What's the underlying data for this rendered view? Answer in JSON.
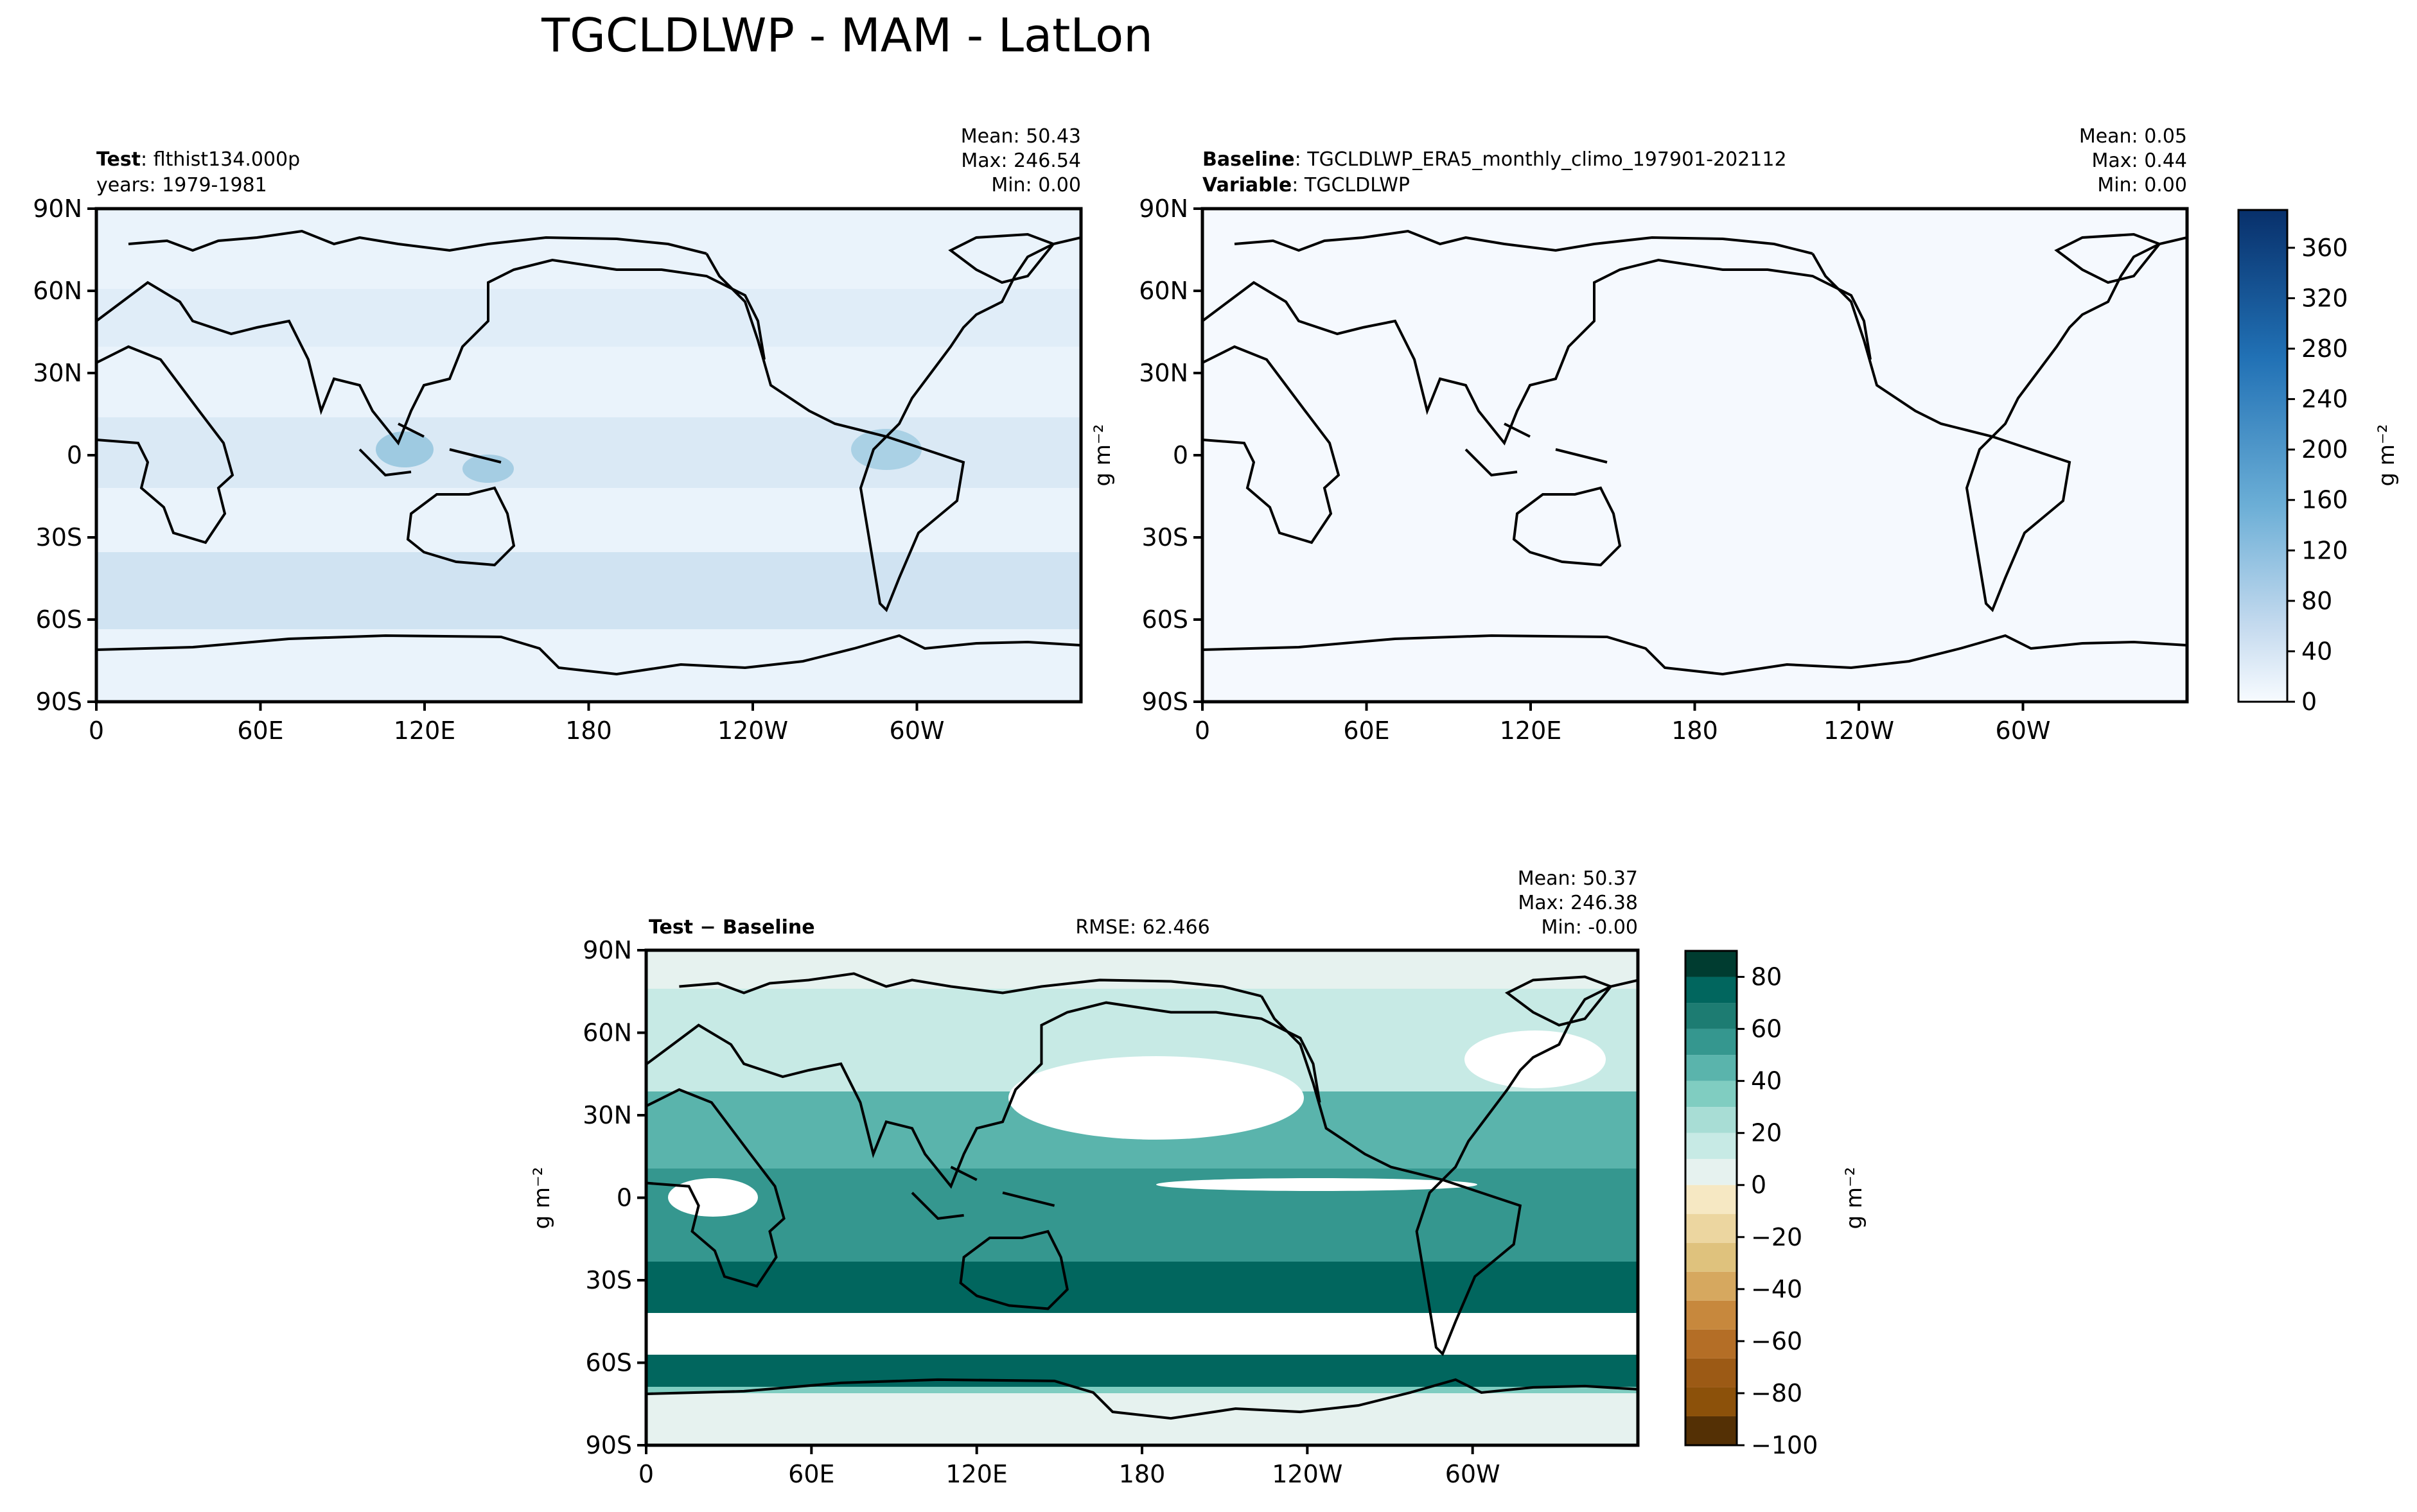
{
  "figure": {
    "title": "TGCLDLWP - MAM - LatLon"
  },
  "colors": {
    "blues": [
      "#f7fbff",
      "#deebf7",
      "#c6dbef",
      "#9ecae1",
      "#6baed6",
      "#4292c6",
      "#2171b5",
      "#08519c",
      "#08306b"
    ],
    "brbg_pos": [
      "#e6f2ef",
      "#c7eae5",
      "#a8ddd5",
      "#80cdc1",
      "#5ab4ac",
      "#35978f",
      "#1d7c72",
      "#01665e",
      "#003c30"
    ],
    "brbg_neg": [
      "#f6e8c3",
      "#ecd6a0",
      "#dfc27d",
      "#d6a85f",
      "#c7883d",
      "#b46e26",
      "#9c5a15",
      "#8c510a",
      "#543005"
    ],
    "axis": "#000000"
  },
  "chart_data": [
    {
      "id": "test",
      "type": "heatmap",
      "title_bold": "Test",
      "title_sep": ": ",
      "title_text": "flthist134.000p",
      "subtitle": "years: 1979-1981",
      "stats": [
        "Mean: 50.43",
        "Max: 246.54",
        "Min:  0.00"
      ],
      "ylabel": "",
      "x_ticks": [
        "0",
        "60E",
        "120E",
        "180",
        "120W",
        "60W"
      ],
      "y_ticks": [
        "90N",
        "60N",
        "30N",
        "0",
        "30S",
        "60S",
        "90S"
      ],
      "xlim": [
        0,
        360
      ],
      "ylim": [
        -90,
        90
      ],
      "projection": "PlateCarree, central_longitude 180"
    },
    {
      "id": "baseline",
      "type": "heatmap",
      "line1_bold": "Baseline",
      "line1_text": "TGCLDLWP_ERA5_monthly_climo_197901-202112",
      "line2_bold": "Variable",
      "line2_text": "TGCLDLWP",
      "sep": ": ",
      "stats": [
        "Mean:  0.05",
        "Max:  0.44",
        "Min:  0.00"
      ],
      "ylabel": "g m⁻²",
      "x_ticks": [
        "0",
        "60E",
        "120E",
        "180",
        "120W",
        "60W"
      ],
      "y_ticks": [
        "90N",
        "60N",
        "30N",
        "0",
        "30S",
        "60S",
        "90S"
      ],
      "xlim": [
        0,
        360
      ],
      "ylim": [
        -90,
        90
      ],
      "colorbar": {
        "ticks": [
          "0",
          "40",
          "80",
          "120",
          "160",
          "200",
          "240",
          "280",
          "320",
          "360"
        ],
        "range": [
          0,
          390
        ],
        "label": "g m⁻²"
      }
    },
    {
      "id": "diff",
      "type": "heatmap",
      "title_bold": "Test − Baseline",
      "rmse": "RMSE: 62.466",
      "stats": [
        "Mean: 50.37",
        "Max: 246.38",
        "Min: -0.00"
      ],
      "ylabel": "g m⁻²",
      "x_ticks": [
        "0",
        "60E",
        "120E",
        "180",
        "120W",
        "60W"
      ],
      "y_ticks": [
        "90N",
        "60N",
        "30N",
        "0",
        "30S",
        "60S",
        "90S"
      ],
      "xlim": [
        0,
        360
      ],
      "ylim": [
        -90,
        90
      ],
      "colorbar": {
        "ticks": [
          "80",
          "60",
          "40",
          "20",
          "0",
          "−20",
          "−40",
          "−60",
          "−80",
          "−100"
        ],
        "range": [
          -100,
          90
        ],
        "label": "g m⁻²"
      }
    }
  ]
}
